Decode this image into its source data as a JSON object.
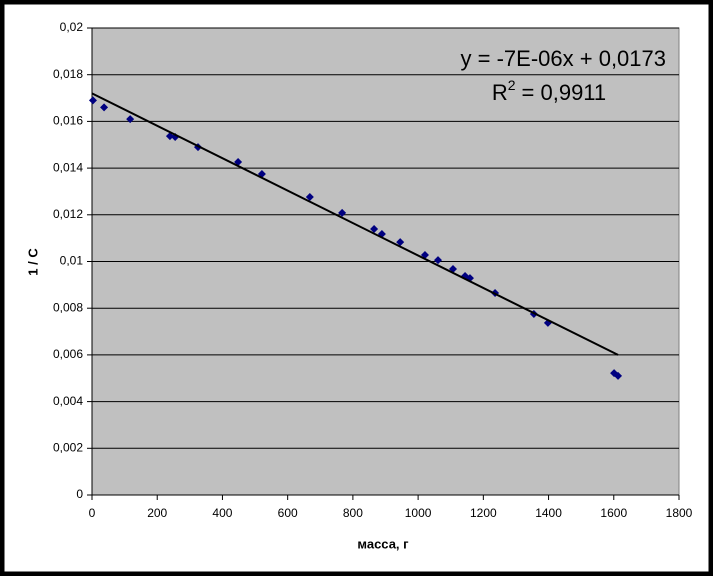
{
  "chart_data": {
    "type": "scatter",
    "xlabel": "масса, г",
    "ylabel": "1 / С",
    "x": [
      3,
      37,
      117,
      239,
      255,
      325,
      448,
      521,
      668,
      767,
      865,
      889,
      945,
      1021,
      1061,
      1107,
      1144,
      1159,
      1236,
      1355,
      1398,
      1601,
      1613
    ],
    "values": [
      0.0169,
      0.0166,
      0.0161,
      0.01537,
      0.01533,
      0.0149,
      0.01426,
      0.01375,
      0.01276,
      0.01208,
      0.01139,
      0.01118,
      0.01083,
      0.01028,
      0.01006,
      0.00968,
      0.00938,
      0.00929,
      0.00865,
      0.00775,
      0.00737,
      0.00522,
      0.0051
    ],
    "color": "#000080",
    "trendline": {
      "x": [
        0,
        1613
      ],
      "values": [
        0.0172,
        0.006
      ],
      "color": "#000000"
    },
    "equation": "y = -7E-06x + 0,0173",
    "r_squared": {
      "base": "R",
      "sup": "2",
      "rest": "= 0,9911"
    },
    "xlim": [
      0,
      1800
    ],
    "xticks": [
      0,
      200,
      400,
      600,
      800,
      1000,
      1200,
      1400,
      1600,
      1800
    ],
    "ylim": [
      0,
      0.02
    ],
    "yticks": [
      0,
      {
        "value": 0.002,
        "label": "0,002"
      },
      {
        "value": 0.004,
        "label": "0,004"
      },
      {
        "value": 0.006,
        "label": "0,006"
      },
      {
        "value": 0.008,
        "label": "0,008"
      },
      {
        "value": 0.01,
        "label": "0,01"
      },
      {
        "value": 0.012,
        "label": "0,012"
      },
      {
        "value": 0.014,
        "label": "0,014"
      },
      {
        "value": 0.016,
        "label": "0,016"
      },
      {
        "value": 0.018,
        "label": "0,018"
      },
      {
        "value": 0.02,
        "label": "0,02"
      }
    ],
    "grid": true,
    "plot_background": "#c0c0c0"
  }
}
